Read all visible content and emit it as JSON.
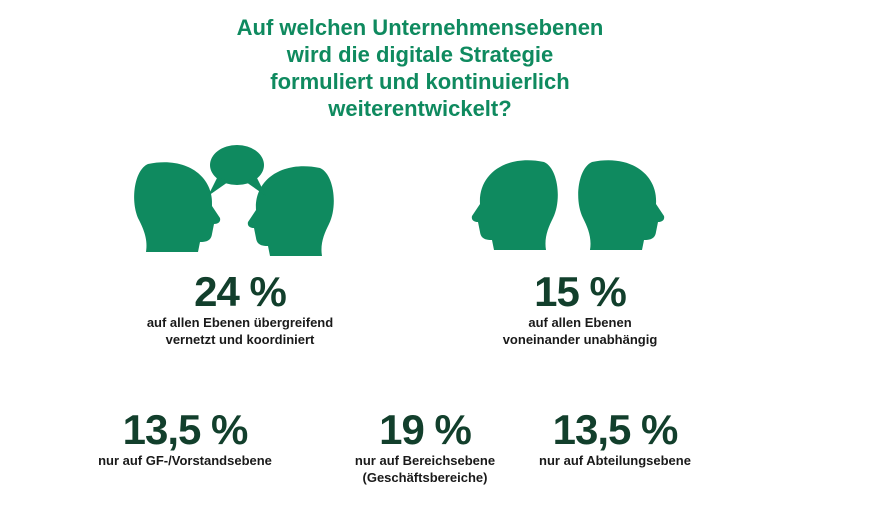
{
  "title": [
    "Auf welchen Unternehmensebenen",
    "wird die digitale Strategie",
    "formuliert und kontinuierlich",
    "weiterentwickelt?"
  ],
  "colors": {
    "accent": "#0f8a5f",
    "value": "#123f2c",
    "label": "#1a1a1a"
  },
  "icons": [
    "two-heads-conversation-icon",
    "two-heads-back-to-back-icon"
  ],
  "chart_data": {
    "type": "infographic",
    "unit": "%",
    "items": [
      {
        "value_label": "24 %",
        "value": 24,
        "label_lines": [
          "auf allen Ebenen übergreifend",
          "vernetzt und koordiniert"
        ]
      },
      {
        "value_label": "15 %",
        "value": 15,
        "label_lines": [
          "auf allen Ebenen",
          "voneinander unabhängig"
        ]
      },
      {
        "value_label": "13,5 %",
        "value": 13.5,
        "label_lines": [
          "nur auf GF-/Vorstandsebene"
        ]
      },
      {
        "value_label": "19 %",
        "value": 19,
        "label_lines": [
          "nur auf Bereichsebene",
          "(Geschäftsbereiche)"
        ]
      },
      {
        "value_label": "13,5 %",
        "value": 13.5,
        "label_lines": [
          "nur auf Abteilungsebene"
        ]
      }
    ]
  }
}
